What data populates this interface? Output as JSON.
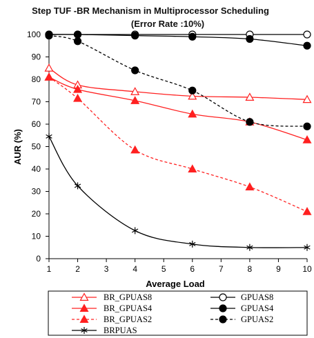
{
  "chart_data": {
    "type": "line",
    "title": "Step TUF -BR Mechanism in Multiprocessor Scheduling",
    "subtitle": "(Error Rate :10%)",
    "xlabel": "Average Load",
    "ylabel": "AUR  (%)",
    "xlim": [
      1,
      10
    ],
    "ylim": [
      0,
      100
    ],
    "xticks": [
      1,
      2,
      3,
      4,
      5,
      6,
      7,
      8,
      9,
      10
    ],
    "yticks": [
      0,
      10,
      20,
      30,
      40,
      50,
      60,
      70,
      80,
      90,
      100
    ],
    "grid": false,
    "legend_position": "bottom",
    "series": [
      {
        "name": "BR_GPUAS8",
        "color": "#ff2020",
        "dash": false,
        "marker": "triangle-open",
        "x": [
          1,
          2,
          4,
          6,
          8,
          10
        ],
        "y": [
          85,
          77.5,
          74.5,
          72.5,
          72,
          71
        ]
      },
      {
        "name": "BR_GPUAS4",
        "color": "#ff2020",
        "dash": false,
        "marker": "triangle",
        "x": [
          1,
          2,
          4,
          6,
          8,
          10
        ],
        "y": [
          81,
          75.5,
          70.5,
          64.5,
          61,
          53
        ]
      },
      {
        "name": "BR_GPUAS2",
        "color": "#ff2020",
        "dash": true,
        "marker": "triangle",
        "x": [
          1,
          2,
          4,
          6,
          8,
          10
        ],
        "y": [
          81,
          71.5,
          48.5,
          40,
          32,
          21
        ]
      },
      {
        "name": "BRPUAS",
        "color": "#000000",
        "dash": false,
        "marker": "star",
        "x": [
          1,
          2,
          4,
          6,
          8,
          10
        ],
        "y": [
          54.5,
          32.5,
          12.5,
          6.5,
          5,
          5
        ]
      },
      {
        "name": "GPUAS8",
        "color": "#000000",
        "dash": false,
        "marker": "circle-open",
        "x": [
          1,
          2,
          4,
          6,
          8,
          10
        ],
        "y": [
          100,
          100,
          100,
          100,
          100,
          100
        ]
      },
      {
        "name": "GPUAS4",
        "color": "#000000",
        "dash": false,
        "marker": "circle",
        "x": [
          1,
          2,
          4,
          6,
          8,
          10
        ],
        "y": [
          100,
          100,
          99.5,
          99,
          98,
          95
        ]
      },
      {
        "name": "GPUAS2",
        "color": "#000000",
        "dash": true,
        "marker": "circle",
        "x": [
          1,
          2,
          4,
          6,
          8,
          10
        ],
        "y": [
          99.5,
          97,
          84,
          75,
          61,
          59
        ]
      }
    ],
    "legend": {
      "rows": [
        [
          "BR_GPUAS8",
          "GPUAS8"
        ],
        [
          "BR_GPUAS4",
          "GPUAS4"
        ],
        [
          "BR_GPUAS2",
          "GPUAS2"
        ],
        [
          "BRPUAS",
          ""
        ]
      ]
    }
  }
}
